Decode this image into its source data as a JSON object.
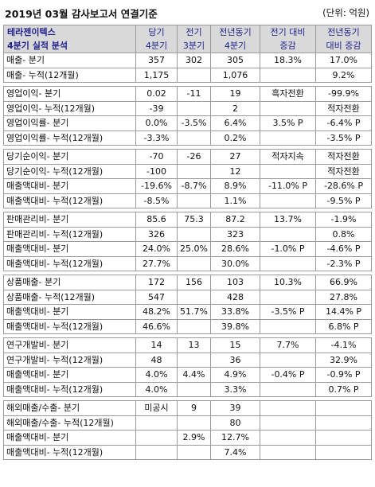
{
  "title": "2019년 03월 감사보고서 연결기준",
  "unit": "(단위: 억원)",
  "header": {
    "c0_l1": "테라젠이텍스",
    "c0_l2": "4분기 실적 분석",
    "c1_l1": "당기",
    "c1_l2": "4분기",
    "c2_l1": "전기",
    "c2_l2": "3분기",
    "c3_l1": "전년동기",
    "c3_l2": "4분기",
    "c4_l1": "전기 대비",
    "c4_l2": "증감",
    "c5_l1": "전년동기",
    "c5_l2": "대비 증감"
  },
  "sections": [
    [
      [
        "매출- 분기",
        "357",
        "302",
        "305",
        "18.3%",
        "17.0%"
      ],
      [
        "매출- 누적(12개월)",
        "1,175",
        "",
        "1,076",
        "",
        "9.2%"
      ]
    ],
    [
      [
        "영업이익- 분기",
        "0.02",
        "-11",
        "19",
        "흑자전환",
        "-99.9%"
      ],
      [
        "영업이익- 누적(12개월)",
        "-39",
        "",
        "2",
        "",
        "적자전환"
      ],
      [
        "영업이익률- 분기",
        "0.0%",
        "-3.5%",
        "6.4%",
        "3.5% P",
        "-6.4% P"
      ],
      [
        "영업이익률- 누적(12개월)",
        "-3.3%",
        "",
        "0.2%",
        "",
        "-3.5% P"
      ]
    ],
    [
      [
        "당기순이익- 분기",
        "-70",
        "-26",
        "27",
        "적자지속",
        "적자전환"
      ],
      [
        "당기순이익- 누적(12개월)",
        "-100",
        "",
        "12",
        "",
        "적자전환"
      ],
      [
        "매출액대비- 분기",
        "-19.6%",
        "-8.7%",
        "8.9%",
        "-11.0% P",
        "-28.6% P"
      ],
      [
        "매출액대비- 누적(12개월)",
        "-8.5%",
        "",
        "1.1%",
        "",
        "-9.5% P"
      ]
    ],
    [
      [
        "판매관리비- 분기",
        "85.6",
        "75.3",
        "87.2",
        "13.7%",
        "-1.9%"
      ],
      [
        "판매관리비- 누적(12개월)",
        "326",
        "",
        "323",
        "",
        "0.8%"
      ],
      [
        "매출액대비- 분기",
        "24.0%",
        "25.0%",
        "28.6%",
        "-1.0% P",
        "-4.6% P"
      ],
      [
        "매출액대비- 누적(12개월)",
        "27.7%",
        "",
        "30.0%",
        "",
        "-2.3% P"
      ]
    ],
    [
      [
        "상품매출- 분기",
        "172",
        "156",
        "103",
        "10.3%",
        "66.9%"
      ],
      [
        "상품매출- 누적(12개월)",
        "547",
        "",
        "428",
        "",
        "27.8%"
      ],
      [
        "매출액대비- 분기",
        "48.2%",
        "51.7%",
        "33.8%",
        "-3.5% P",
        "14.4% P"
      ],
      [
        "매출액대비- 누적(12개월)",
        "46.6%",
        "",
        "39.8%",
        "",
        "6.8% P"
      ]
    ],
    [
      [
        "연구개발비- 분기",
        "14",
        "13",
        "15",
        "7.7%",
        "-4.1%"
      ],
      [
        "연구개발비- 누적(12개월)",
        "48",
        "",
        "36",
        "",
        "32.9%"
      ],
      [
        "매출액대비- 분기",
        "4.0%",
        "4.4%",
        "4.9%",
        "-0.4% P",
        "-0.9% P"
      ],
      [
        "매출액대비- 누적(12개월)",
        "4.0%",
        "",
        "3.3%",
        "",
        "0.7% P"
      ]
    ],
    [
      [
        "해외매출/수출- 분기",
        "미공시",
        "9",
        "39",
        "",
        ""
      ],
      [
        "해외매출/수출- 누적(12개월)",
        "",
        "",
        "80",
        "",
        ""
      ],
      [
        "매출액대비- 분기",
        "",
        "2.9%",
        "12.7%",
        "",
        ""
      ],
      [
        "매출액대비- 누적(12개월)",
        "",
        "",
        "7.4%",
        "",
        ""
      ]
    ]
  ]
}
